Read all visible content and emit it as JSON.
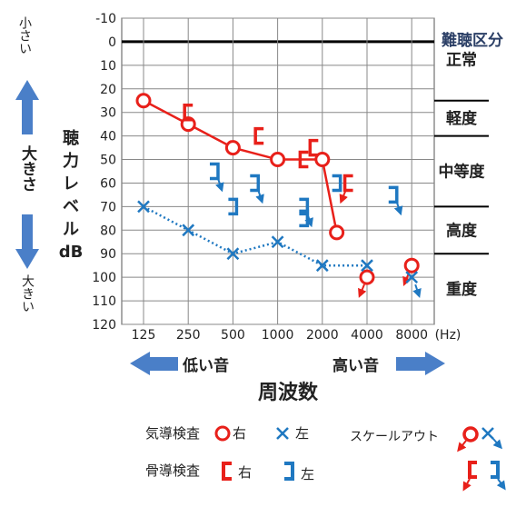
{
  "chart_data": {
    "type": "line",
    "xlabel": "周波数",
    "x_unit": "(Hz)",
    "ylabel_chars": [
      "聴",
      "力",
      "レ",
      "ベ",
      "ル",
      "dB"
    ],
    "x_ticks": [
      "125",
      "250",
      "500",
      "1000",
      "2000",
      "4000",
      "8000"
    ],
    "y_ticks": [
      -10,
      0,
      10,
      20,
      30,
      40,
      50,
      60,
      70,
      80,
      90,
      100,
      110,
      120
    ],
    "ylim": [
      -10,
      120
    ],
    "y_inverted": true,
    "grid": true,
    "series": [
      {
        "name": "気導検査 右",
        "marker": "circle",
        "color": "#e8201a",
        "line": "solid",
        "points": [
          [
            125,
            25
          ],
          [
            250,
            35
          ],
          [
            500,
            45
          ],
          [
            1000,
            50
          ],
          [
            2000,
            50
          ],
          [
            2500,
            81
          ]
        ],
        "scale_out": [
          [
            4000,
            100
          ],
          [
            8000,
            95
          ]
        ]
      },
      {
        "name": "気導検査 左",
        "marker": "x",
        "color": "#1f78c1",
        "line": "dotted",
        "points": [
          [
            125,
            70
          ],
          [
            250,
            80
          ],
          [
            500,
            90
          ],
          [
            1000,
            85
          ],
          [
            2000,
            95
          ],
          [
            4000,
            95
          ]
        ],
        "scale_out": [
          [
            8000,
            100
          ]
        ]
      },
      {
        "name": "骨導検査 右",
        "marker": "[",
        "color": "#e8201a",
        "points": [
          [
            250,
            30
          ],
          [
            750,
            40
          ],
          [
            1500,
            50
          ],
          [
            1750,
            45
          ]
        ],
        "scale_out": [
          [
            3000,
            60
          ]
        ]
      },
      {
        "name": "骨導検査 左",
        "marker": "]",
        "color": "#1f78c1",
        "points": [
          [
            500,
            70
          ],
          [
            1500,
            75
          ],
          [
            2500,
            60
          ]
        ],
        "scale_out": [
          [
            375,
            55
          ],
          [
            700,
            60
          ],
          [
            1500,
            70
          ],
          [
            6000,
            65
          ]
        ]
      }
    ],
    "severity": {
      "title": "難聴区分",
      "bands": [
        {
          "label": "正常",
          "from": -10,
          "to": 25
        },
        {
          "label": "軽度",
          "from": 25,
          "to": 40
        },
        {
          "label": "中等度",
          "from": 40,
          "to": 70
        },
        {
          "label": "高度",
          "from": 70,
          "to": 90
        },
        {
          "label": "重度",
          "from": 90,
          "to": 120
        }
      ]
    },
    "arrows": {
      "small": "小さい",
      "large": "大きさ",
      "big": "大きい",
      "low": "低い音",
      "high": "高い音"
    },
    "legend": {
      "air": "気導検査",
      "bone": "骨導検査",
      "right": "右",
      "left": "左",
      "scale_out": "スケールアウト"
    },
    "colors": {
      "red": "#e8201a",
      "blue": "#1f78c1",
      "arrow": "#4a7fc8"
    }
  }
}
